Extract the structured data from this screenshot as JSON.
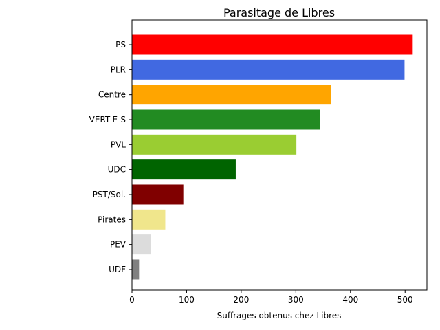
{
  "chart_data": {
    "type": "bar",
    "orientation": "horizontal",
    "title": "Parasitage de Libres",
    "xlabel": "Suffrages obtenus chez Libres",
    "ylabel": "",
    "xlim": [
      0,
      540
    ],
    "xticks": [
      0,
      100,
      200,
      300,
      400,
      500
    ],
    "grid": false,
    "categories": [
      "PS",
      "PLR",
      "Centre",
      "VERT-E-S",
      "PVL",
      "UDC",
      "PST/Sol.",
      "Pirates",
      "PEV",
      "UDF"
    ],
    "values": [
      514,
      499,
      364,
      344,
      301,
      190,
      94,
      61,
      35,
      13
    ],
    "colors": [
      "#ff0000",
      "#4169e1",
      "#ffa500",
      "#228b22",
      "#9acd32",
      "#006400",
      "#800000",
      "#f0e68c",
      "#dcdcdc",
      "#808080"
    ]
  }
}
